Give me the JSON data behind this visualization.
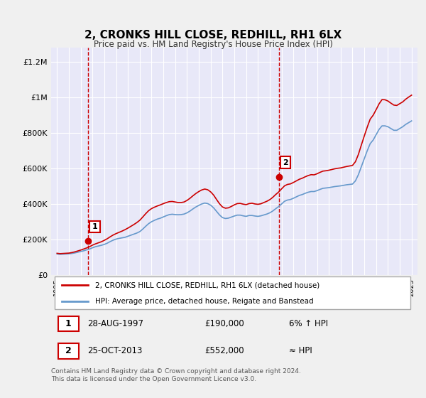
{
  "title": "2, CRONKS HILL CLOSE, REDHILL, RH1 6LX",
  "subtitle": "Price paid vs. HM Land Registry's House Price Index (HPI)",
  "background_color": "#f0f0f0",
  "plot_bg_color": "#e8e8f8",
  "ylabel_ticks": [
    "£0",
    "£200K",
    "£400K",
    "£600K",
    "£800K",
    "£1M",
    "£1.2M"
  ],
  "ytick_values": [
    0,
    200000,
    400000,
    600000,
    800000,
    1000000,
    1200000
  ],
  "ylim": [
    0,
    1280000
  ],
  "xlim_start": 1994.5,
  "xlim_end": 2025.5,
  "xtick_years": [
    1995,
    1996,
    1997,
    1998,
    1999,
    2000,
    2001,
    2002,
    2003,
    2004,
    2005,
    2006,
    2007,
    2008,
    2009,
    2010,
    2011,
    2012,
    2013,
    2014,
    2015,
    2016,
    2017,
    2018,
    2019,
    2020,
    2021,
    2022,
    2023,
    2024,
    2025
  ],
  "sale1_x": 1997.65,
  "sale1_y": 190000,
  "sale1_label": "1",
  "sale2_x": 2013.81,
  "sale2_y": 552000,
  "sale2_label": "2",
  "vline1_x": 1997.65,
  "vline2_x": 2013.81,
  "legend_line1": "2, CRONKS HILL CLOSE, REDHILL, RH1 6LX (detached house)",
  "legend_line2": "HPI: Average price, detached house, Reigate and Banstead",
  "table_rows": [
    [
      "1",
      "28-AUG-1997",
      "£190,000",
      "6% ↑ HPI"
    ],
    [
      "2",
      "25-OCT-2013",
      "£552,000",
      "≈ HPI"
    ]
  ],
  "footer": "Contains HM Land Registry data © Crown copyright and database right 2024.\nThis data is licensed under the Open Government Licence v3.0.",
  "line_color_red": "#cc0000",
  "line_color_blue": "#6699cc",
  "sale_color": "#cc0000",
  "vline_color": "#cc0000",
  "hpi_line_data_x": [
    1995.0,
    1995.25,
    1995.5,
    1995.75,
    1996.0,
    1996.25,
    1996.5,
    1996.75,
    1997.0,
    1997.25,
    1997.5,
    1997.75,
    1998.0,
    1998.25,
    1998.5,
    1998.75,
    1999.0,
    1999.25,
    1999.5,
    1999.75,
    2000.0,
    2000.25,
    2000.5,
    2000.75,
    2001.0,
    2001.25,
    2001.5,
    2001.75,
    2002.0,
    2002.25,
    2002.5,
    2002.75,
    2003.0,
    2003.25,
    2003.5,
    2003.75,
    2004.0,
    2004.25,
    2004.5,
    2004.75,
    2005.0,
    2005.25,
    2005.5,
    2005.75,
    2006.0,
    2006.25,
    2006.5,
    2006.75,
    2007.0,
    2007.25,
    2007.5,
    2007.75,
    2008.0,
    2008.25,
    2008.5,
    2008.75,
    2009.0,
    2009.25,
    2009.5,
    2009.75,
    2010.0,
    2010.25,
    2010.5,
    2010.75,
    2011.0,
    2011.25,
    2011.5,
    2011.75,
    2012.0,
    2012.25,
    2012.5,
    2012.75,
    2013.0,
    2013.25,
    2013.5,
    2013.75,
    2014.0,
    2014.25,
    2014.5,
    2014.75,
    2015.0,
    2015.25,
    2015.5,
    2015.75,
    2016.0,
    2016.25,
    2016.5,
    2016.75,
    2017.0,
    2017.25,
    2017.5,
    2017.75,
    2018.0,
    2018.25,
    2018.5,
    2018.75,
    2019.0,
    2019.25,
    2019.5,
    2019.75,
    2020.0,
    2020.25,
    2020.5,
    2020.75,
    2021.0,
    2021.25,
    2021.5,
    2021.75,
    2022.0,
    2022.25,
    2022.5,
    2022.75,
    2023.0,
    2023.25,
    2023.5,
    2023.75,
    2024.0,
    2024.25,
    2024.5,
    2024.75,
    2025.0
  ],
  "hpi_line_data_y": [
    118000,
    116000,
    117000,
    118000,
    119000,
    121000,
    124000,
    128000,
    132000,
    136000,
    141000,
    146000,
    153000,
    159000,
    163000,
    167000,
    172000,
    179000,
    188000,
    196000,
    202000,
    206000,
    209000,
    212000,
    218000,
    224000,
    230000,
    236000,
    244000,
    258000,
    274000,
    289000,
    300000,
    308000,
    315000,
    320000,
    327000,
    334000,
    340000,
    342000,
    340000,
    339000,
    340000,
    343000,
    350000,
    360000,
    372000,
    383000,
    392000,
    400000,
    405000,
    402000,
    393000,
    378000,
    358000,
    338000,
    323000,
    318000,
    320000,
    326000,
    332000,
    337000,
    337000,
    333000,
    330000,
    335000,
    335000,
    332000,
    330000,
    333000,
    338000,
    343000,
    350000,
    360000,
    373000,
    385000,
    400000,
    415000,
    422000,
    425000,
    432000,
    440000,
    448000,
    453000,
    460000,
    466000,
    470000,
    470000,
    475000,
    482000,
    488000,
    490000,
    492000,
    495000,
    498000,
    500000,
    502000,
    505000,
    508000,
    510000,
    512000,
    530000,
    565000,
    610000,
    655000,
    700000,
    740000,
    760000,
    790000,
    820000,
    840000,
    840000,
    835000,
    825000,
    815000,
    815000,
    825000,
    835000,
    848000,
    858000,
    868000
  ],
  "price_line_data_x": [
    1995.0,
    1995.25,
    1995.5,
    1995.75,
    1996.0,
    1996.25,
    1996.5,
    1996.75,
    1997.0,
    1997.25,
    1997.5,
    1997.75,
    1998.0,
    1998.25,
    1998.5,
    1998.75,
    1999.0,
    1999.25,
    1999.5,
    1999.75,
    2000.0,
    2000.25,
    2000.5,
    2000.75,
    2001.0,
    2001.25,
    2001.5,
    2001.75,
    2002.0,
    2002.25,
    2002.5,
    2002.75,
    2003.0,
    2003.25,
    2003.5,
    2003.75,
    2004.0,
    2004.25,
    2004.5,
    2004.75,
    2005.0,
    2005.25,
    2005.5,
    2005.75,
    2006.0,
    2006.25,
    2006.5,
    2006.75,
    2007.0,
    2007.25,
    2007.5,
    2007.75,
    2008.0,
    2008.25,
    2008.5,
    2008.75,
    2009.0,
    2009.25,
    2009.5,
    2009.75,
    2010.0,
    2010.25,
    2010.5,
    2010.75,
    2011.0,
    2011.25,
    2011.5,
    2011.75,
    2012.0,
    2012.25,
    2012.5,
    2012.75,
    2013.0,
    2013.25,
    2013.5,
    2013.75,
    2014.0,
    2014.25,
    2014.5,
    2014.75,
    2015.0,
    2015.25,
    2015.5,
    2015.75,
    2016.0,
    2016.25,
    2016.5,
    2016.75,
    2017.0,
    2017.25,
    2017.5,
    2017.75,
    2018.0,
    2018.25,
    2018.5,
    2018.75,
    2019.0,
    2019.25,
    2019.5,
    2019.75,
    2020.0,
    2020.25,
    2020.5,
    2020.75,
    2021.0,
    2021.25,
    2021.5,
    2021.75,
    2022.0,
    2022.25,
    2022.5,
    2022.75,
    2023.0,
    2023.25,
    2023.5,
    2023.75,
    2024.0,
    2024.25,
    2024.5,
    2024.75,
    2025.0
  ],
  "price_line_data_y": [
    122000,
    120000,
    121000,
    122000,
    123000,
    126000,
    130000,
    135000,
    140000,
    146000,
    152000,
    159000,
    168000,
    175000,
    181000,
    187000,
    195000,
    204000,
    215000,
    225000,
    233000,
    240000,
    247000,
    255000,
    264000,
    274000,
    284000,
    295000,
    308000,
    326000,
    345000,
    362000,
    374000,
    382000,
    389000,
    395000,
    402000,
    408000,
    413000,
    414000,
    411000,
    408000,
    408000,
    411000,
    420000,
    432000,
    446000,
    459000,
    470000,
    479000,
    484000,
    480000,
    468000,
    450000,
    425000,
    401000,
    383000,
    376000,
    378000,
    386000,
    395000,
    402000,
    403000,
    399000,
    396000,
    402000,
    404000,
    400000,
    398000,
    401000,
    408000,
    415000,
    424000,
    437000,
    453000,
    467000,
    485000,
    502000,
    510000,
    513000,
    521000,
    530000,
    539000,
    545000,
    553000,
    560000,
    565000,
    564000,
    570000,
    578000,
    585000,
    587000,
    590000,
    594000,
    598000,
    601000,
    603000,
    607000,
    611000,
    614000,
    617000,
    638000,
    679000,
    732000,
    783000,
    833000,
    878000,
    900000,
    931000,
    964000,
    988000,
    987000,
    980000,
    968000,
    957000,
    955000,
    965000,
    975000,
    990000,
    1002000,
    1013000
  ]
}
